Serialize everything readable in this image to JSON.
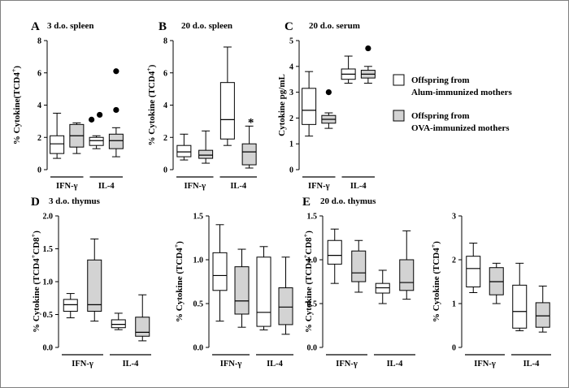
{
  "colors": {
    "alum": "#ffffff",
    "ova": "#d3d3d3",
    "stroke": "#000000",
    "frame": "#808080",
    "background": "#ffffff"
  },
  "legend": {
    "placement": "right",
    "entries": [
      {
        "key": "alum",
        "line1": "Offspring from",
        "line2": "Alum-immunized mothers"
      },
      {
        "key": "ova",
        "line1": "Offspring from",
        "line2": "OVA-immunized mothers"
      }
    ]
  },
  "chart_data": [
    {
      "type": "box",
      "letter": "A",
      "title": "3 d.o. spleen",
      "ylabel": "% Cytokine(TCD4+)",
      "ylabel_main": "% Cytokine(TCD4",
      "ylabel_sup": "+",
      "ylabel_tail": ")",
      "ylim": [
        0,
        8
      ],
      "yticks": [
        "0",
        "2",
        "4",
        "6",
        "8"
      ],
      "groups": [
        "IFN-γ",
        "IL-4"
      ],
      "boxes": [
        {
          "group": 0,
          "series": "alum",
          "whisker_low": 0.7,
          "q1": 1.0,
          "median": 1.6,
          "q3": 2.1,
          "whisker_high": 3.5,
          "outliers": []
        },
        {
          "group": 0,
          "series": "ova",
          "whisker_low": 1.0,
          "q1": 1.4,
          "median": 2.1,
          "q3": 2.8,
          "whisker_high": 2.9,
          "outliers": []
        },
        {
          "group": 1,
          "series": "alum",
          "whisker_low": 1.3,
          "q1": 1.5,
          "median": 1.8,
          "q3": 2.0,
          "whisker_high": 2.1,
          "outliers": [
            3.1,
            3.4
          ]
        },
        {
          "group": 1,
          "series": "ova",
          "whisker_low": 0.8,
          "q1": 1.3,
          "median": 1.8,
          "q3": 2.2,
          "whisker_high": 2.6,
          "outliers": [
            3.7,
            6.1
          ]
        }
      ],
      "annotations": []
    },
    {
      "type": "box",
      "letter": "B",
      "title": "20 d.o. spleen",
      "ylabel": "% Cytokine (TCD4+)",
      "ylabel_main": "% Cytokine (TCD4",
      "ylabel_sup": "+",
      "ylabel_tail": ")",
      "ylim": [
        0,
        8
      ],
      "yticks": [
        "0",
        "2",
        "4",
        "6",
        "8"
      ],
      "groups": [
        "IFN-γ",
        "IL-4"
      ],
      "boxes": [
        {
          "group": 0,
          "series": "alum",
          "whisker_low": 0.6,
          "q1": 0.8,
          "median": 1.1,
          "q3": 1.5,
          "whisker_high": 2.2,
          "outliers": []
        },
        {
          "group": 0,
          "series": "ova",
          "whisker_low": 0.4,
          "q1": 0.7,
          "median": 0.9,
          "q3": 1.2,
          "whisker_high": 2.4,
          "outliers": []
        },
        {
          "group": 1,
          "series": "alum",
          "whisker_low": 1.5,
          "q1": 1.9,
          "median": 3.1,
          "q3": 5.4,
          "whisker_high": 7.6,
          "outliers": []
        },
        {
          "group": 1,
          "series": "ova",
          "whisker_low": 0.1,
          "q1": 0.3,
          "median": 1.1,
          "q3": 1.6,
          "whisker_high": 2.7,
          "outliers": []
        }
      ],
      "annotations": [
        {
          "text": "*",
          "group": 1,
          "series": "ova",
          "y": 3.0
        }
      ]
    },
    {
      "type": "box",
      "letter": "C",
      "title": "20 d.o. serum",
      "ylabel": "Cytokine pg/mL",
      "ylim": [
        0,
        5
      ],
      "yticks": [
        "0",
        "1",
        "2",
        "3",
        "4",
        "5"
      ],
      "groups": [
        "IFN-γ",
        "IL-4"
      ],
      "boxes": [
        {
          "group": 0,
          "series": "alum",
          "whisker_low": 1.3,
          "q1": 1.75,
          "median": 2.3,
          "q3": 3.15,
          "whisker_high": 3.8,
          "outliers": []
        },
        {
          "group": 0,
          "series": "ova",
          "whisker_low": 1.6,
          "q1": 1.8,
          "median": 1.95,
          "q3": 2.1,
          "whisker_high": 2.2,
          "outliers": [
            3.0
          ]
        },
        {
          "group": 1,
          "series": "alum",
          "whisker_low": 3.35,
          "q1": 3.5,
          "median": 3.7,
          "q3": 3.9,
          "whisker_high": 4.4,
          "outliers": []
        },
        {
          "group": 1,
          "series": "ova",
          "whisker_low": 3.35,
          "q1": 3.55,
          "median": 3.7,
          "q3": 3.85,
          "whisker_high": 4.0,
          "outliers": [
            4.7
          ]
        }
      ],
      "annotations": []
    },
    {
      "type": "box",
      "letter": "D",
      "title": "3 d.o. thymus",
      "ylabel": "% Cytokine (TCD4+CD8+)",
      "ylabel_main": "% Cytokine  (TCD4",
      "ylabel_sup": "+",
      "ylabel_mid": "CD8",
      "ylabel_sup2": "+",
      "ylabel_tail": ")",
      "ylim": [
        0,
        2.0
      ],
      "yticks": [
        "0.0",
        "0.5",
        "1.0",
        "1.5",
        "2.0"
      ],
      "groups": [
        "IFN-γ",
        "IL-4"
      ],
      "boxes": [
        {
          "group": 0,
          "series": "alum",
          "whisker_low": 0.45,
          "q1": 0.55,
          "median": 0.65,
          "q3": 0.73,
          "whisker_high": 0.82,
          "outliers": []
        },
        {
          "group": 0,
          "series": "ova",
          "whisker_low": 0.4,
          "q1": 0.55,
          "median": 0.65,
          "q3": 1.33,
          "whisker_high": 1.65,
          "outliers": []
        },
        {
          "group": 1,
          "series": "alum",
          "whisker_low": 0.27,
          "q1": 0.3,
          "median": 0.35,
          "q3": 0.42,
          "whisker_high": 0.52,
          "outliers": []
        },
        {
          "group": 1,
          "series": "ova",
          "whisker_low": 0.1,
          "q1": 0.17,
          "median": 0.23,
          "q3": 0.46,
          "whisker_high": 0.8,
          "outliers": []
        }
      ],
      "annotations": []
    },
    {
      "type": "box",
      "letter": "",
      "title": "",
      "ylabel": "% Cytokine (TCD4+)",
      "ylabel_main": "% Cytokine (TCD4",
      "ylabel_sup": "+",
      "ylabel_tail": ")",
      "ylim": [
        0,
        1.5
      ],
      "yticks": [
        "0.0",
        "0.5",
        "1.0",
        "1.5"
      ],
      "groups": [
        "IFN-γ",
        "IL-4"
      ],
      "boxes": [
        {
          "group": 0,
          "series": "alum",
          "whisker_low": 0.3,
          "q1": 0.65,
          "median": 0.82,
          "q3": 1.08,
          "whisker_high": 1.4,
          "outliers": []
        },
        {
          "group": 0,
          "series": "ova",
          "whisker_low": 0.23,
          "q1": 0.38,
          "median": 0.53,
          "q3": 0.92,
          "whisker_high": 1.12,
          "outliers": []
        },
        {
          "group": 1,
          "series": "alum",
          "whisker_low": 0.2,
          "q1": 0.24,
          "median": 0.4,
          "q3": 1.03,
          "whisker_high": 1.15,
          "outliers": []
        },
        {
          "group": 1,
          "series": "ova",
          "whisker_low": 0.15,
          "q1": 0.26,
          "median": 0.46,
          "q3": 0.68,
          "whisker_high": 1.03,
          "outliers": []
        }
      ],
      "annotations": []
    },
    {
      "type": "box",
      "letter": "E",
      "title": "20 d.o. thymus",
      "ylabel": "% Cytokine (TCD4+CD8+)",
      "ylabel_main": "% Cytokine (TCD4",
      "ylabel_sup": "+",
      "ylabel_mid": "CD8",
      "ylabel_sup2": "+",
      "ylabel_tail": ")",
      "ylim": [
        0,
        1.5
      ],
      "yticks": [
        "0.0",
        "0.5",
        "1.0",
        "1.5"
      ],
      "groups": [
        "IFN-γ",
        "IL-4"
      ],
      "boxes": [
        {
          "group": 0,
          "series": "alum",
          "whisker_low": 0.73,
          "q1": 0.95,
          "median": 1.05,
          "q3": 1.22,
          "whisker_high": 1.35,
          "outliers": []
        },
        {
          "group": 0,
          "series": "ova",
          "whisker_low": 0.63,
          "q1": 0.75,
          "median": 0.85,
          "q3": 1.1,
          "whisker_high": 1.22,
          "outliers": []
        },
        {
          "group": 1,
          "series": "alum",
          "whisker_low": 0.5,
          "q1": 0.62,
          "median": 0.68,
          "q3": 0.73,
          "whisker_high": 0.88,
          "outliers": []
        },
        {
          "group": 1,
          "series": "ova",
          "whisker_low": 0.55,
          "q1": 0.65,
          "median": 0.74,
          "q3": 1.0,
          "whisker_high": 1.33,
          "outliers": []
        }
      ],
      "annotations": []
    },
    {
      "type": "box",
      "letter": "",
      "title": "",
      "ylabel": "% Cytokine (TCD4+)",
      "ylabel_main": "% Cytokine (TCD4",
      "ylabel_sup": "+",
      "ylabel_tail": ")",
      "ylim": [
        0,
        3
      ],
      "yticks": [
        "0",
        "1",
        "2",
        "3"
      ],
      "groups": [
        "IFN-γ",
        "IL-4"
      ],
      "boxes": [
        {
          "group": 0,
          "series": "alum",
          "whisker_low": 1.25,
          "q1": 1.38,
          "median": 1.8,
          "q3": 2.08,
          "whisker_high": 2.38,
          "outliers": []
        },
        {
          "group": 0,
          "series": "ova",
          "whisker_low": 1.0,
          "q1": 1.2,
          "median": 1.5,
          "q3": 1.82,
          "whisker_high": 1.92,
          "outliers": []
        },
        {
          "group": 1,
          "series": "alum",
          "whisker_low": 0.38,
          "q1": 0.44,
          "median": 0.82,
          "q3": 1.42,
          "whisker_high": 1.92,
          "outliers": []
        },
        {
          "group": 1,
          "series": "ova",
          "whisker_low": 0.35,
          "q1": 0.46,
          "median": 0.72,
          "q3": 1.02,
          "whisker_high": 1.4,
          "outliers": []
        }
      ],
      "annotations": []
    }
  ]
}
